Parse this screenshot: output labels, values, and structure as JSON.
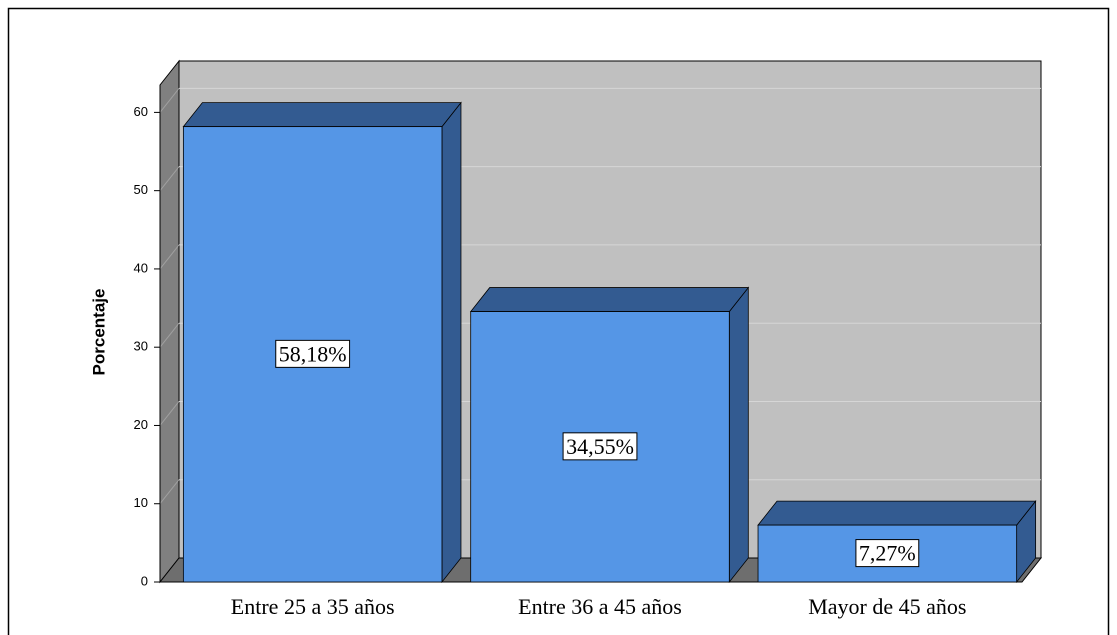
{
  "chart_data": {
    "type": "bar3d",
    "ylabel": "Porcentaje",
    "categories": [
      "Entre 25 a 35 años",
      "Entre 36 a 45 años",
      "Mayor de 45 años"
    ],
    "values": [
      58.18,
      34.55,
      7.27
    ],
    "value_labels": [
      "58,18%",
      "34,55%",
      "7,27%"
    ],
    "color": "#5596e6",
    "ylim": [
      0,
      63.5
    ],
    "yticks": [
      0,
      10,
      20,
      30,
      40,
      50,
      60
    ],
    "grid": true
  }
}
